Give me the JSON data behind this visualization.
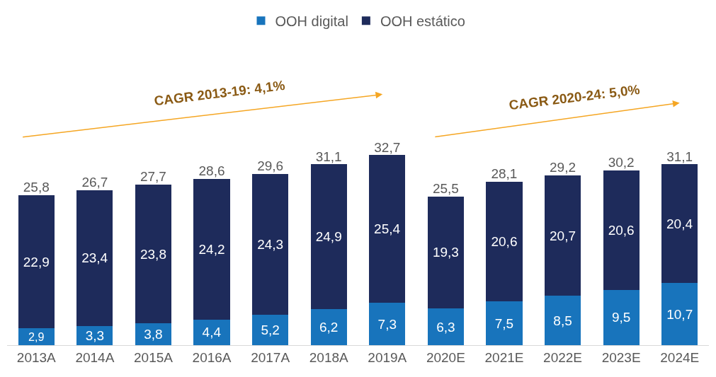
{
  "chart_data": {
    "type": "bar",
    "stacked": true,
    "legend": "top",
    "categories": [
      "2013A",
      "2014A",
      "2015A",
      "2016A",
      "2017A",
      "2018A",
      "2019A",
      "2020E",
      "2021E",
      "2022E",
      "2023E",
      "2024E"
    ],
    "series": [
      {
        "name": "OOH digital",
        "color": "#1874bc",
        "values": [
          2.9,
          3.3,
          3.8,
          4.4,
          5.2,
          6.2,
          7.3,
          6.3,
          7.5,
          8.5,
          9.5,
          10.7
        ],
        "value_labels": [
          "2,9",
          "3,3",
          "3,8",
          "4,4",
          "5,2",
          "6,2",
          "7,3",
          "6,3",
          "7,5",
          "8,5",
          "9,5",
          "10,7"
        ]
      },
      {
        "name": "OOH estático",
        "color": "#1e2b5b",
        "values": [
          22.9,
          23.4,
          23.8,
          24.2,
          24.3,
          24.9,
          25.4,
          19.3,
          20.6,
          20.7,
          20.6,
          20.4
        ],
        "value_labels": [
          "22,9",
          "23,4",
          "23,8",
          "24,2",
          "24,3",
          "24,9",
          "25,4",
          "19,3",
          "20,6",
          "20,7",
          "20,6",
          "20,4"
        ]
      }
    ],
    "totals": [
      "25,8",
      "26,7",
      "27,7",
      "28,6",
      "29,6",
      "31,1",
      "32,7",
      "25,5",
      "28,1",
      "29,2",
      "30,2",
      "31,1"
    ],
    "annotations": [
      "CAGR 2013-19: 4,1%",
      "CAGR 2020-24: 5,0%"
    ]
  }
}
